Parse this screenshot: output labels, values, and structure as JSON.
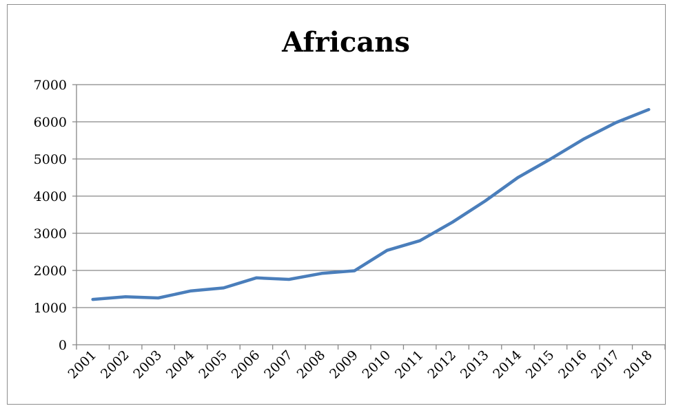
{
  "chart_data": {
    "type": "line",
    "title": "Africans",
    "xlabel": "",
    "ylabel": "",
    "ylim": [
      0,
      7000
    ],
    "yticks": [
      0,
      1000,
      2000,
      3000,
      4000,
      5000,
      6000,
      7000
    ],
    "grid": true,
    "legend": "none",
    "categories": [
      "2001",
      "2002",
      "2003",
      "2004",
      "2005",
      "2006",
      "2007",
      "2008",
      "2009",
      "2010",
      "2011",
      "2012",
      "2013",
      "2014",
      "2015",
      "2016",
      "2017",
      "2018"
    ],
    "series": [
      {
        "color": "#4a7ebb",
        "values": [
          1220,
          1290,
          1260,
          1450,
          1530,
          1800,
          1760,
          1920,
          1990,
          2540,
          2800,
          3300,
          3870,
          4500,
          5000,
          5530,
          5980,
          6330
        ]
      }
    ]
  }
}
